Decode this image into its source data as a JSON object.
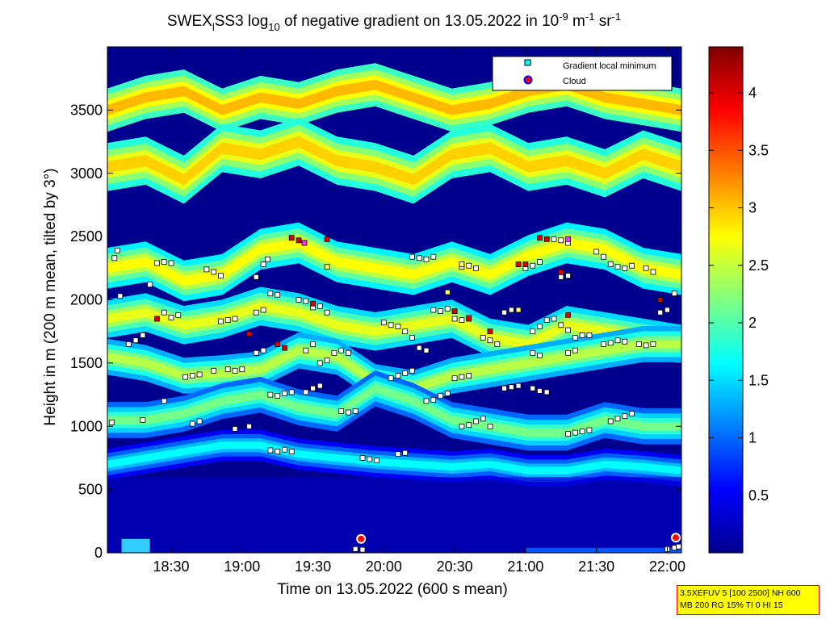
{
  "chart_data": {
    "type": "heatmap",
    "title": {
      "prefix": "SWEX",
      "prefix_sub": "l",
      "main": "SS3 log",
      "main_sub": "10",
      "middle": " of negative gradient on 13.05.2022 in 10",
      "exp1": "-9",
      "unit1": " m",
      "exp2": "-1",
      "unit2": " sr",
      "exp3": "-1"
    },
    "xlabel": "Time on 13.05.2022 (600 s mean)",
    "ylabel": "Height in m (200 m mean, tilted by 3°)",
    "x_ticks": [
      "18:30",
      "19:00",
      "19:30",
      "20:00",
      "20:30",
      "21:00",
      "21:30",
      "22:00"
    ],
    "x_tick_hours": [
      18.5,
      19.0,
      19.5,
      20.0,
      20.5,
      21.0,
      21.5,
      22.0
    ],
    "xlim_hours": [
      18.05,
      22.1
    ],
    "y_ticks": [
      0,
      500,
      1000,
      1500,
      2000,
      2500,
      3000,
      3500
    ],
    "ylim": [
      0,
      4000
    ],
    "colorbar": {
      "ticks": [
        "0.5",
        "1",
        "1.5",
        "2",
        "2.5",
        "3",
        "3.5",
        "4"
      ],
      "tick_values": [
        0.5,
        1,
        1.5,
        2,
        2.5,
        3,
        3.5,
        4
      ],
      "range": [
        0,
        4.4
      ]
    },
    "legend": {
      "placement": "top-right",
      "entries": [
        "Gradient local minimum",
        "Cloud"
      ]
    },
    "layers": [
      {
        "heights": [
          3500,
          3600,
          3650,
          3500,
          3600,
          3550,
          3650,
          3700,
          3600,
          3500,
          3550,
          3650,
          3700,
          3600,
          3550,
          3500
        ],
        "level": 2.9,
        "thickness": 180
      },
      {
        "heights": [
          3050,
          3100,
          2950,
          3200,
          3150,
          3250,
          3100,
          3050,
          2950,
          3150,
          3200,
          3050,
          3100,
          3000,
          3150,
          3050
        ],
        "level": 2.8,
        "thickness": 200
      },
      {
        "heights": [
          2250,
          2300,
          2150,
          2200,
          2400,
          2450,
          2300,
          2250,
          2200,
          2300,
          2200,
          2350,
          2450,
          2400,
          2250,
          2200
        ],
        "level": 2.6,
        "thickness": 170
      },
      {
        "heights": [
          1850,
          1900,
          1800,
          1850,
          1950,
          1900,
          1800,
          1750,
          1800,
          1850,
          1700,
          1650,
          1800,
          1750,
          1700,
          1650
        ],
        "level": 2.5,
        "thickness": 160
      },
      {
        "heights": [
          1550,
          1500,
          1400,
          1420,
          1450,
          1600,
          1550,
          1350,
          1300,
          1400,
          1450,
          1500,
          1550,
          1600,
          1650,
          1650
        ],
        "level": 2.3,
        "thickness": 150
      },
      {
        "heights": [
          1050,
          1050,
          1100,
          1200,
          1250,
          1150,
          1100,
          1300,
          1200,
          1050,
          1000,
          950,
          950,
          1050,
          1000,
          1000
        ],
        "level": 2.0,
        "thickness": 150
      },
      {
        "heights": [
          700,
          750,
          800,
          850,
          850,
          780,
          750,
          720,
          700,
          680,
          700,
          650,
          650,
          700,
          680,
          650
        ],
        "level": 1.5,
        "thickness": 130
      }
    ],
    "gradient_minima": [
      {
        "t": 18.08,
        "h": 1030
      },
      {
        "t": 18.1,
        "h": 2330
      },
      {
        "t": 18.12,
        "h": 2390
      },
      {
        "t": 18.14,
        "h": 2030
      },
      {
        "t": 18.2,
        "h": 1650
      },
      {
        "t": 18.25,
        "h": 1680
      },
      {
        "t": 18.3,
        "h": 1720
      },
      {
        "t": 18.3,
        "h": 1050
      },
      {
        "t": 18.35,
        "h": 2120
      },
      {
        "t": 18.4,
        "h": 2290
      },
      {
        "t": 18.45,
        "h": 2300
      },
      {
        "t": 18.5,
        "h": 2290
      },
      {
        "t": 18.45,
        "h": 1900
      },
      {
        "t": 18.5,
        "h": 1860
      },
      {
        "t": 18.55,
        "h": 1880
      },
      {
        "t": 18.45,
        "h": 1200
      },
      {
        "t": 18.6,
        "h": 1390
      },
      {
        "t": 18.65,
        "h": 1400
      },
      {
        "t": 18.7,
        "h": 1410
      },
      {
        "t": 18.65,
        "h": 1020
      },
      {
        "t": 18.7,
        "h": 1040
      },
      {
        "t": 18.75,
        "h": 2240
      },
      {
        "t": 18.8,
        "h": 2220
      },
      {
        "t": 18.85,
        "h": 2190
      },
      {
        "t": 18.85,
        "h": 1830
      },
      {
        "t": 18.9,
        "h": 1840
      },
      {
        "t": 18.95,
        "h": 1850
      },
      {
        "t": 18.8,
        "h": 1440
      },
      {
        "t": 18.9,
        "h": 1450
      },
      {
        "t": 18.95,
        "h": 1440
      },
      {
        "t": 19.0,
        "h": 1450
      },
      {
        "t": 18.95,
        "h": 980
      },
      {
        "t": 19.05,
        "h": 1000
      },
      {
        "t": 19.1,
        "h": 2180
      },
      {
        "t": 19.15,
        "h": 2280
      },
      {
        "t": 19.18,
        "h": 2320
      },
      {
        "t": 19.1,
        "h": 1900
      },
      {
        "t": 19.15,
        "h": 1920
      },
      {
        "t": 19.2,
        "h": 2050
      },
      {
        "t": 19.25,
        "h": 2040
      },
      {
        "t": 19.1,
        "h": 1580
      },
      {
        "t": 19.15,
        "h": 1600
      },
      {
        "t": 19.2,
        "h": 1250
      },
      {
        "t": 19.25,
        "h": 1240
      },
      {
        "t": 19.3,
        "h": 1260
      },
      {
        "t": 19.35,
        "h": 1270
      },
      {
        "t": 19.2,
        "h": 810
      },
      {
        "t": 19.25,
        "h": 800
      },
      {
        "t": 19.3,
        "h": 815
      },
      {
        "t": 19.35,
        "h": 800
      },
      {
        "t": 19.4,
        "h": 2000
      },
      {
        "t": 19.45,
        "h": 1990
      },
      {
        "t": 19.5,
        "h": 1940
      },
      {
        "t": 19.55,
        "h": 1950
      },
      {
        "t": 19.6,
        "h": 1900
      },
      {
        "t": 19.45,
        "h": 1600
      },
      {
        "t": 19.5,
        "h": 1650
      },
      {
        "t": 19.55,
        "h": 1500
      },
      {
        "t": 19.6,
        "h": 1520
      },
      {
        "t": 19.45,
        "h": 1270
      },
      {
        "t": 19.5,
        "h": 1300
      },
      {
        "t": 19.55,
        "h": 1320
      },
      {
        "t": 19.65,
        "h": 1580
      },
      {
        "t": 19.7,
        "h": 1600
      },
      {
        "t": 19.75,
        "h": 1580
      },
      {
        "t": 19.7,
        "h": 1120
      },
      {
        "t": 19.75,
        "h": 1110
      },
      {
        "t": 19.8,
        "h": 1120
      },
      {
        "t": 19.85,
        "h": 750
      },
      {
        "t": 19.9,
        "h": 740
      },
      {
        "t": 19.95,
        "h": 730
      },
      {
        "t": 20.0,
        "h": 1820
      },
      {
        "t": 20.05,
        "h": 1800
      },
      {
        "t": 20.1,
        "h": 1790
      },
      {
        "t": 20.15,
        "h": 1750
      },
      {
        "t": 20.2,
        "h": 1700
      },
      {
        "t": 20.25,
        "h": 1620
      },
      {
        "t": 20.3,
        "h": 1600
      },
      {
        "t": 20.05,
        "h": 1380
      },
      {
        "t": 20.1,
        "h": 1400
      },
      {
        "t": 20.15,
        "h": 1420
      },
      {
        "t": 20.2,
        "h": 1440
      },
      {
        "t": 20.1,
        "h": 780
      },
      {
        "t": 20.15,
        "h": 790
      },
      {
        "t": 20.2,
        "h": 2340
      },
      {
        "t": 20.25,
        "h": 2330
      },
      {
        "t": 20.3,
        "h": 2320
      },
      {
        "t": 20.35,
        "h": 2340
      },
      {
        "t": 20.35,
        "h": 1920
      },
      {
        "t": 20.4,
        "h": 1910
      },
      {
        "t": 20.45,
        "h": 1930
      },
      {
        "t": 20.3,
        "h": 1200
      },
      {
        "t": 20.35,
        "h": 1210
      },
      {
        "t": 20.4,
        "h": 1240
      },
      {
        "t": 20.45,
        "h": 1260
      },
      {
        "t": 20.5,
        "h": 1380
      },
      {
        "t": 20.55,
        "h": 1390
      },
      {
        "t": 20.6,
        "h": 1400
      },
      {
        "t": 20.5,
        "h": 1850
      },
      {
        "t": 20.55,
        "h": 1840
      },
      {
        "t": 20.6,
        "h": 1860
      },
      {
        "t": 20.55,
        "h": 2260
      },
      {
        "t": 20.6,
        "h": 2270
      },
      {
        "t": 20.65,
        "h": 2250
      },
      {
        "t": 20.55,
        "h": 1000
      },
      {
        "t": 20.6,
        "h": 1010
      },
      {
        "t": 20.65,
        "h": 1040
      },
      {
        "t": 20.7,
        "h": 1060
      },
      {
        "t": 20.75,
        "h": 1000
      },
      {
        "t": 20.7,
        "h": 1700
      },
      {
        "t": 20.75,
        "h": 1680
      },
      {
        "t": 20.8,
        "h": 1650
      },
      {
        "t": 20.85,
        "h": 1900
      },
      {
        "t": 20.9,
        "h": 1920
      },
      {
        "t": 20.85,
        "h": 1300
      },
      {
        "t": 20.9,
        "h": 1310
      },
      {
        "t": 20.95,
        "h": 1320
      },
      {
        "t": 21.0,
        "h": 2250
      },
      {
        "t": 21.05,
        "h": 2270
      },
      {
        "t": 21.1,
        "h": 2300
      },
      {
        "t": 21.05,
        "h": 1750
      },
      {
        "t": 21.1,
        "h": 1790
      },
      {
        "t": 21.15,
        "h": 1840
      },
      {
        "t": 21.05,
        "h": 1580
      },
      {
        "t": 21.1,
        "h": 1560
      },
      {
        "t": 21.05,
        "h": 1300
      },
      {
        "t": 21.1,
        "h": 1280
      },
      {
        "t": 21.15,
        "h": 1270
      },
      {
        "t": 21.2,
        "h": 2480
      },
      {
        "t": 21.25,
        "h": 2470
      },
      {
        "t": 21.3,
        "h": 2450
      },
      {
        "t": 21.25,
        "h": 2180
      },
      {
        "t": 21.3,
        "h": 2190
      },
      {
        "t": 21.2,
        "h": 1850
      },
      {
        "t": 21.25,
        "h": 1800
      },
      {
        "t": 21.3,
        "h": 1760
      },
      {
        "t": 21.35,
        "h": 1700
      },
      {
        "t": 21.4,
        "h": 1720
      },
      {
        "t": 21.45,
        "h": 1720
      },
      {
        "t": 21.3,
        "h": 1580
      },
      {
        "t": 21.35,
        "h": 1600
      },
      {
        "t": 21.3,
        "h": 940
      },
      {
        "t": 21.35,
        "h": 950
      },
      {
        "t": 21.4,
        "h": 960
      },
      {
        "t": 21.45,
        "h": 970
      },
      {
        "t": 21.5,
        "h": 2380
      },
      {
        "t": 21.55,
        "h": 2340
      },
      {
        "t": 21.6,
        "h": 2280
      },
      {
        "t": 21.65,
        "h": 2260
      },
      {
        "t": 21.7,
        "h": 2250
      },
      {
        "t": 21.75,
        "h": 2270
      },
      {
        "t": 21.55,
        "h": 1650
      },
      {
        "t": 21.6,
        "h": 1660
      },
      {
        "t": 21.65,
        "h": 1680
      },
      {
        "t": 21.7,
        "h": 1670
      },
      {
        "t": 21.6,
        "h": 1040
      },
      {
        "t": 21.65,
        "h": 1060
      },
      {
        "t": 21.7,
        "h": 1080
      },
      {
        "t": 21.75,
        "h": 1100
      },
      {
        "t": 21.8,
        "h": 1650
      },
      {
        "t": 21.85,
        "h": 1640
      },
      {
        "t": 21.9,
        "h": 1650
      },
      {
        "t": 21.85,
        "h": 2250
      },
      {
        "t": 21.9,
        "h": 2220
      },
      {
        "t": 21.95,
        "h": 1900
      },
      {
        "t": 22.0,
        "h": 1920
      },
      {
        "t": 22.05,
        "h": 2050
      },
      {
        "t": 22.0,
        "h": 30
      },
      {
        "t": 22.05,
        "h": 40
      },
      {
        "t": 22.08,
        "h": 50
      },
      {
        "t": 19.8,
        "h": 30
      },
      {
        "t": 19.85,
        "h": 25
      }
    ],
    "red_minima": [
      {
        "t": 18.4,
        "h": 1850
      },
      {
        "t": 19.05,
        "h": 1730
      },
      {
        "t": 19.25,
        "h": 1650
      },
      {
        "t": 19.3,
        "h": 1620
      },
      {
        "t": 19.35,
        "h": 2490
      },
      {
        "t": 19.4,
        "h": 2470
      },
      {
        "t": 19.6,
        "h": 2480
      },
      {
        "t": 20.6,
        "h": 1850
      },
      {
        "t": 20.75,
        "h": 1750
      },
      {
        "t": 20.95,
        "h": 2280
      },
      {
        "t": 21.1,
        "h": 2490
      },
      {
        "t": 21.15,
        "h": 2480
      },
      {
        "t": 21.3,
        "h": 1880
      },
      {
        "t": 21.25,
        "h": 2220
      },
      {
        "t": 19.5,
        "h": 1970
      },
      {
        "t": 20.5,
        "h": 1910
      },
      {
        "t": 21.0,
        "h": 2280
      },
      {
        "t": 21.95,
        "h": 2000
      }
    ],
    "magenta_minima": [
      {
        "t": 19.44,
        "h": 2450
      },
      {
        "t": 21.3,
        "h": 2480
      }
    ],
    "yellow_minima": [
      {
        "t": 19.6,
        "h": 2260
      },
      {
        "t": 20.45,
        "h": 2060
      },
      {
        "t": 20.95,
        "h": 1920
      },
      {
        "t": 20.55,
        "h": 2280
      }
    ],
    "clouds": [
      {
        "t": 19.84,
        "h": 110
      },
      {
        "t": 22.06,
        "h": 120
      }
    ]
  },
  "info_box": {
    "line1": "3.5XEFUV 5 [100 2500] NH 600",
    "line2": "MB 200 RG 15% TI 0 HI 15"
  }
}
